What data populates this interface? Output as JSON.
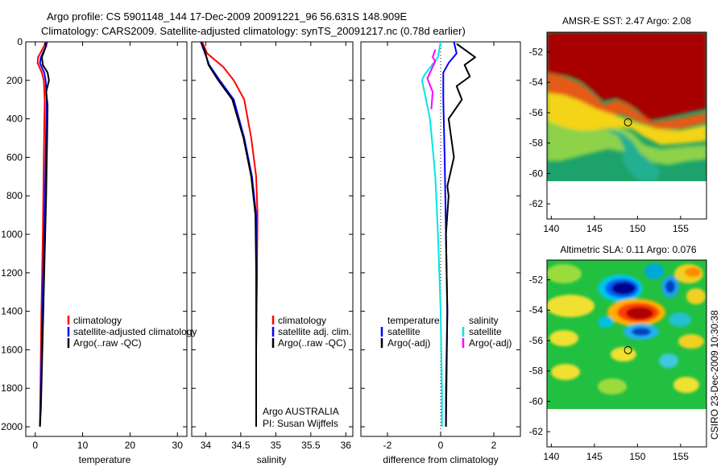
{
  "header": {
    "line1": "Argo profile: CS 5901148_144 17-Dec-2009 20091221_96 56.631S 148.909E",
    "line2": "Climatology: CARS2009. Satellite-adjusted climatology: synTS_20091217.nc (0.78d earlier)"
  },
  "colors": {
    "red": "#ff0000",
    "blue": "#0000ff",
    "black": "#000000",
    "cyan": "#00e5e5",
    "magenta": "#ff00ff"
  },
  "side_label": "CSIRO 23-Dec-2009 10:30:38",
  "chart_data": [
    {
      "type": "line",
      "name": "temperature",
      "xlabel": "temperature",
      "xlim": [
        -2,
        32
      ],
      "ylim": [
        0,
        2050
      ],
      "xticks": [
        "0",
        "10",
        "20",
        "30"
      ],
      "xtick_values": [
        0,
        10,
        20,
        30
      ],
      "yticks": [
        "0",
        "200",
        "400",
        "600",
        "800",
        "1000",
        "1200",
        "1400",
        "1600",
        "1800",
        "2000"
      ],
      "ytick_values": [
        0,
        200,
        400,
        600,
        800,
        1000,
        1200,
        1400,
        1600,
        1800,
        2000
      ],
      "legend": [
        "climatology",
        "satellite-adjusted climatology",
        "Argo(..raw -QC)"
      ],
      "series": [
        {
          "name": "climatology",
          "color": "red",
          "x": [
            2.2,
            1.9,
            0.6,
            0.5,
            1.4,
            1.8,
            2.0,
            1.8,
            1.6,
            1.3,
            1.1,
            1.0
          ],
          "y": [
            0,
            20,
            80,
            110,
            160,
            200,
            300,
            600,
            1000,
            1400,
            1800,
            2000
          ]
        },
        {
          "name": "satellite-adjusted climatology",
          "color": "blue",
          "x": [
            2.5,
            2.3,
            1.2,
            1.0,
            1.9,
            2.2,
            2.4,
            2.2,
            1.9,
            1.5,
            1.2,
            1.0
          ],
          "y": [
            0,
            20,
            80,
            110,
            160,
            200,
            300,
            600,
            1000,
            1400,
            1800,
            1990
          ]
        },
        {
          "name": "Argo(..raw -QC)",
          "color": "black",
          "x": [
            2.0,
            2.3,
            1.4,
            1.6,
            2.6,
            2.9,
            2.3,
            2.6,
            2.5,
            2.3,
            1.9,
            1.5,
            1.2,
            1.0
          ],
          "y": [
            5,
            20,
            80,
            120,
            160,
            200,
            260,
            330,
            500,
            800,
            1200,
            1600,
            1900,
            2000
          ]
        }
      ]
    },
    {
      "type": "line",
      "name": "salinity",
      "xlabel": "salinity",
      "xlim": [
        33.8,
        36.1
      ],
      "ylim": [
        0,
        2050
      ],
      "xticks": [
        "34",
        "34.5",
        "35",
        "35.5",
        "36"
      ],
      "xtick_values": [
        34,
        34.5,
        35,
        35.5,
        36
      ],
      "legend": [
        "climatology",
        "satellite adj. clim.",
        "Argo(..raw -QC)"
      ],
      "annotation": [
        "Argo AUSTRALIA",
        "PI: Susan Wijffels"
      ],
      "series": [
        {
          "name": "climatology",
          "color": "red",
          "x": [
            33.95,
            34.02,
            34.25,
            34.4,
            34.55,
            34.65,
            34.72,
            34.74,
            34.73,
            34.72,
            34.72
          ],
          "y": [
            0,
            60,
            130,
            200,
            300,
            500,
            700,
            900,
            1200,
            1600,
            2000
          ]
        },
        {
          "name": "satellite adj. clim.",
          "color": "blue",
          "x": [
            33.93,
            33.98,
            34.05,
            34.2,
            34.4,
            34.55,
            34.66,
            34.72,
            34.73,
            34.72,
            34.72
          ],
          "y": [
            0,
            50,
            120,
            200,
            300,
            500,
            700,
            900,
            1200,
            1600,
            1990
          ]
        },
        {
          "name": "Argo(..raw -QC)",
          "color": "black",
          "x": [
            33.94,
            33.99,
            34.04,
            34.18,
            34.38,
            34.54,
            34.65,
            34.71,
            34.72,
            34.72,
            34.72
          ],
          "y": [
            5,
            50,
            120,
            200,
            300,
            500,
            700,
            900,
            1200,
            1600,
            2000
          ]
        }
      ]
    },
    {
      "type": "line",
      "name": "difference",
      "xlabel": "difference from climatology",
      "xlim": [
        -3,
        3
      ],
      "ylim": [
        0,
        2050
      ],
      "xticks": [
        "-2",
        "0",
        "2"
      ],
      "xtick_values": [
        -2,
        0,
        2
      ],
      "legend_headers": [
        "temperature",
        "salinity"
      ],
      "legend_left": [
        "satellite",
        "Argo(-adj)"
      ],
      "legend_right": [
        "satellite",
        "Argo(-adj)"
      ],
      "series": [
        {
          "name": "temperature satellite",
          "color": "blue",
          "x": [
            0.5,
            0.6,
            0.3,
            0.1,
            0.1,
            0.15,
            0.2,
            0.25,
            0.2,
            0.2
          ],
          "y": [
            0,
            60,
            110,
            160,
            300,
            600,
            1000,
            1400,
            1800,
            2000
          ]
        },
        {
          "name": "temperature Argo(-adj)",
          "color": "black",
          "x": [
            0.6,
            0.9,
            1.3,
            0.9,
            1.1,
            0.6,
            0.8,
            0.3,
            0.5,
            0.25,
            0.3,
            0.2,
            0.25,
            0.2
          ],
          "y": [
            10,
            40,
            80,
            120,
            180,
            230,
            300,
            400,
            600,
            750,
            800,
            1000,
            1400,
            2000
          ]
        },
        {
          "name": "salinity satellite",
          "color": "cyan",
          "x": [
            0.0,
            -0.1,
            -0.6,
            -0.7,
            -0.4,
            -0.2,
            -0.1,
            0.0,
            0.05,
            0.05
          ],
          "y": [
            0,
            80,
            170,
            200,
            400,
            700,
            1000,
            1400,
            1800,
            2000
          ]
        },
        {
          "name": "salinity Argo(-adj)",
          "color": "magenta",
          "x": [
            -0.2,
            -0.3,
            -0.2,
            -0.5,
            -0.3,
            -0.35
          ],
          "y": [
            40,
            80,
            100,
            190,
            260,
            350
          ]
        }
      ]
    },
    {
      "type": "heatmap",
      "name": "sst",
      "title": "AMSR-E SST: 2.47 Argo: 2.08",
      "xticks": [
        "140",
        "145",
        "150",
        "155"
      ],
      "xtick_values": [
        140,
        145,
        150,
        155
      ],
      "yticks": [
        "-52",
        "-54",
        "-56",
        "-58",
        "-60",
        "-62"
      ],
      "ytick_values": [
        -52,
        -54,
        -56,
        -58,
        -60,
        -62
      ],
      "xlim": [
        139.5,
        158
      ],
      "ylim": [
        -63,
        -50.7
      ],
      "data_ylim": [
        -60,
        -50.7
      ],
      "marker": [
        148.9,
        -56.63
      ]
    },
    {
      "type": "heatmap",
      "name": "sla",
      "title": "Altimetric SLA: 0.11 Argo: 0.076",
      "xticks": [
        "140",
        "145",
        "150",
        "155"
      ],
      "xtick_values": [
        140,
        145,
        150,
        155
      ],
      "yticks": [
        "-52",
        "-54",
        "-56",
        "-58",
        "-60",
        "-62"
      ],
      "ytick_values": [
        -52,
        -54,
        -56,
        -58,
        -60,
        -62
      ],
      "xlim": [
        139.5,
        158
      ],
      "ylim": [
        -63,
        -50.7
      ],
      "data_ylim": [
        -60,
        -50.7
      ],
      "marker": [
        148.9,
        -56.63
      ]
    }
  ]
}
